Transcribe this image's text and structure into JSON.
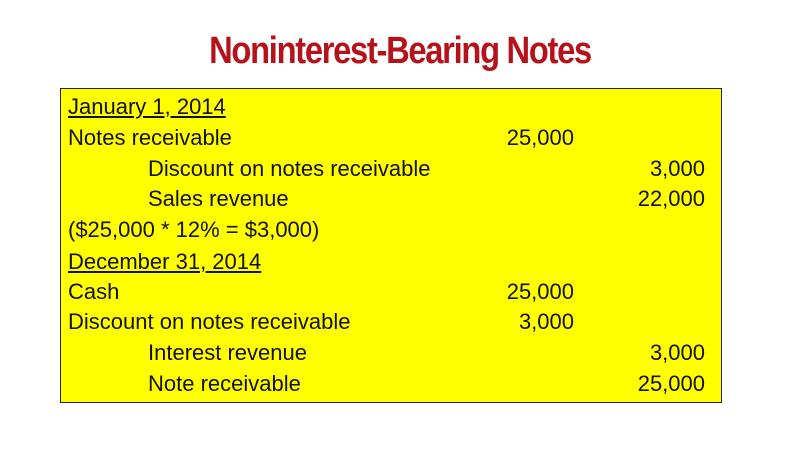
{
  "title": "Noninterest-Bearing Notes",
  "entries": [
    {
      "date": "January 1, 2014"
    },
    {
      "account": "Notes receivable",
      "debit": "25,000"
    },
    {
      "account": "Discount on notes receivable",
      "credit": "3,000"
    },
    {
      "account": "Sales revenue",
      "credit": "22,000"
    },
    {
      "note": "($25,000 * 12% = $3,000)"
    },
    {
      "date": "December 31, 2014"
    },
    {
      "account": "Cash",
      "debit": "25,000"
    },
    {
      "account": "Discount on notes receivable",
      "debit": "3,000"
    },
    {
      "account": "Interest revenue",
      "credit": "3,000"
    },
    {
      "account": "Note receivable",
      "credit": "25,000"
    }
  ]
}
